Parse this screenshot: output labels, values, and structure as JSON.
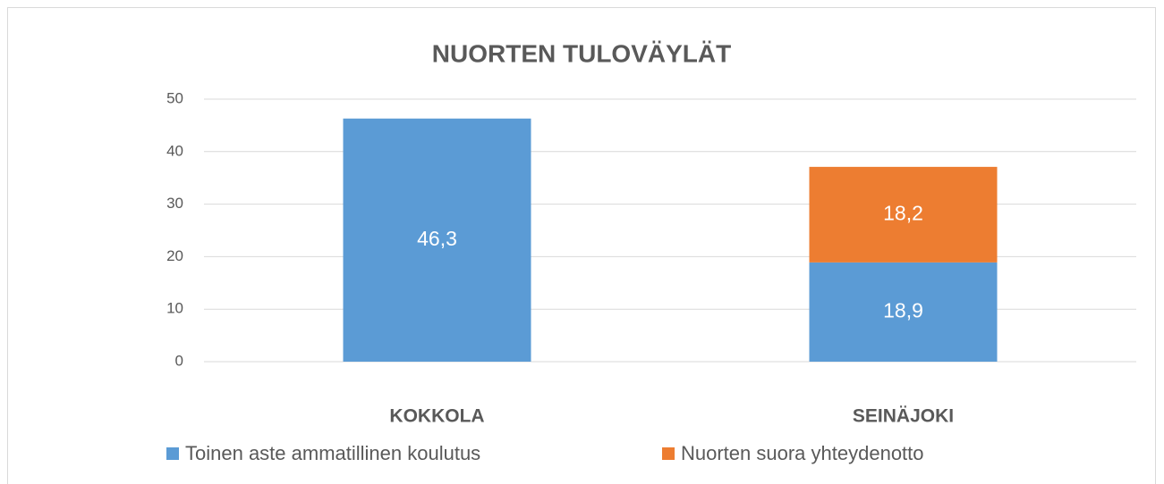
{
  "chart_data": {
    "type": "stacked_bar",
    "title": "NUORTEN TULOVÄYLÄT",
    "categories": [
      "KOKKOLA",
      "SEINÄJOKI"
    ],
    "series": [
      {
        "name": "Toinen aste ammatillinen koulutus",
        "color": "#5b9bd5",
        "values": [
          46.3,
          18.9
        ],
        "value_labels": [
          "46,3",
          "18,9"
        ]
      },
      {
        "name": "Nuorten suora yhteydenotto",
        "color": "#ed7d31",
        "values": [
          null,
          18.2
        ],
        "value_labels": [
          null,
          "18,2"
        ]
      }
    ],
    "ylim": [
      0,
      50
    ],
    "yticks": [
      0,
      10,
      20,
      30,
      40,
      50
    ],
    "grid": true,
    "legend": "bottom"
  }
}
